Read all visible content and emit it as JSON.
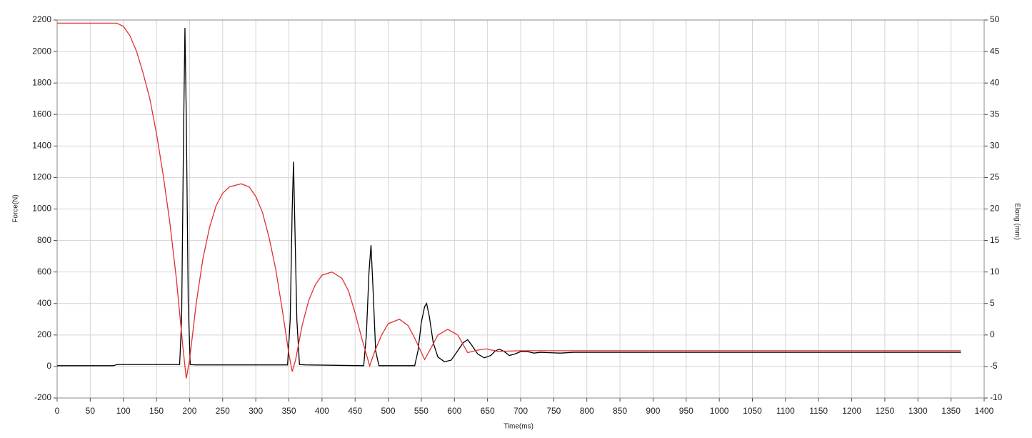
{
  "chart_data": {
    "type": "line",
    "x_label": "Time(ms)",
    "y_label": "Force(N)",
    "y2_label": "Elong (mm)",
    "xlim": [
      0,
      1400
    ],
    "xticks": [
      0,
      50,
      100,
      150,
      200,
      250,
      300,
      350,
      400,
      450,
      500,
      550,
      600,
      650,
      700,
      750,
      800,
      850,
      900,
      950,
      1000,
      1050,
      1100,
      1150,
      1200,
      1250,
      1300,
      1350,
      1400
    ],
    "ylim": [
      -200,
      2200
    ],
    "yticks": [
      -200,
      0,
      200,
      400,
      600,
      800,
      1000,
      1200,
      1400,
      1600,
      1800,
      2000,
      2200
    ],
    "y2lim": [
      -10,
      50
    ],
    "y2ticks": [
      -10,
      -5,
      0,
      5,
      10,
      15,
      20,
      25,
      30,
      35,
      40,
      45,
      50
    ],
    "grid": true,
    "series": [
      {
        "color": "#000000",
        "axis": "y",
        "x": [
          0,
          85,
          90,
          185,
          188,
          191,
          193,
          195,
          198,
          201,
          210,
          348,
          352,
          355,
          357,
          359,
          362,
          366,
          375,
          463,
          467,
          471,
          474,
          477,
          481,
          486,
          500,
          540,
          545,
          550,
          555,
          558,
          562,
          568,
          575,
          585,
          595,
          605,
          613,
          620,
          627,
          635,
          645,
          655,
          662,
          668,
          675,
          683,
          692,
          700,
          710,
          720,
          730,
          740,
          760,
          780,
          800,
          1365
        ],
        "values": [
          5,
          5,
          12,
          12,
          300,
          1500,
          2150,
          1600,
          400,
          12,
          10,
          10,
          300,
          1000,
          1300,
          900,
          300,
          12,
          10,
          5,
          200,
          600,
          770,
          500,
          100,
          5,
          5,
          5,
          100,
          280,
          380,
          400,
          320,
          150,
          60,
          30,
          40,
          100,
          150,
          170,
          130,
          80,
          55,
          70,
          100,
          110,
          95,
          70,
          80,
          95,
          95,
          85,
          90,
          88,
          85,
          90,
          90,
          90
        ]
      },
      {
        "color": "#e03030",
        "axis": "y2",
        "x": [
          0,
          90,
          100,
          110,
          120,
          130,
          140,
          150,
          160,
          170,
          180,
          190,
          195,
          200,
          210,
          220,
          230,
          240,
          250,
          260,
          278,
          290,
          300,
          310,
          320,
          330,
          340,
          350,
          355,
          360,
          370,
          380,
          390,
          400,
          415,
          430,
          440,
          450,
          460,
          472,
          480,
          490,
          500,
          517,
          530,
          540,
          555,
          565,
          575,
          590,
          605,
          620,
          635,
          648,
          665,
          700,
          1365
        ],
        "values": [
          49.5,
          49.5,
          49,
          47.5,
          45,
          41.5,
          37.5,
          32,
          25.5,
          18,
          9,
          -2,
          -6.9,
          -4,
          5,
          12,
          17,
          20.5,
          22.5,
          23.5,
          24,
          23.5,
          22,
          19.5,
          15.5,
          10.5,
          4,
          -3,
          -5.8,
          -4,
          1.5,
          5.5,
          8,
          9.5,
          10,
          9,
          7,
          3.5,
          -0.5,
          -4.9,
          -2.5,
          0,
          1.8,
          2.5,
          1.5,
          -0.5,
          -3.9,
          -2,
          0,
          0.9,
          0,
          -2.8,
          -2.4,
          -2.2,
          -2.6,
          -2.5,
          -2.5
        ]
      }
    ]
  }
}
